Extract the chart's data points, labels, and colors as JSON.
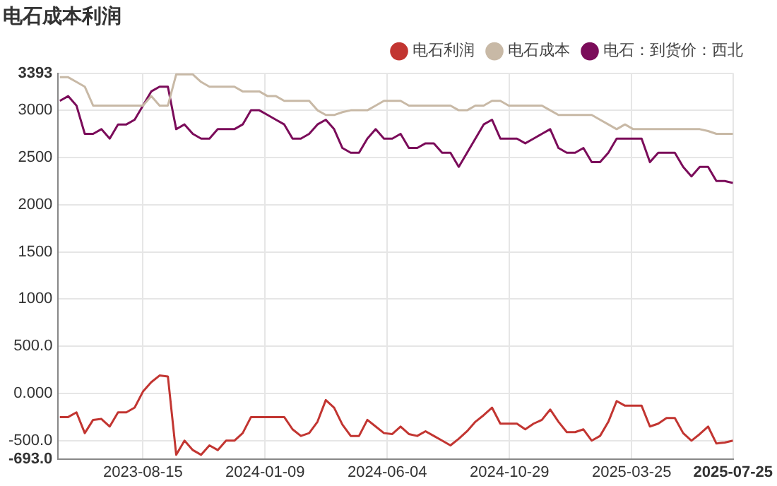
{
  "chart_data": {
    "type": "line",
    "title": "电石成本利润",
    "x": [
      "2023-05-07",
      "2023-05-17",
      "2023-05-27",
      "2023-06-06",
      "2023-06-16",
      "2023-06-26",
      "2023-07-06",
      "2023-07-16",
      "2023-07-26",
      "2023-08-05",
      "2023-08-15",
      "2023-08-25",
      "2023-09-04",
      "2023-09-14",
      "2023-09-24",
      "2023-10-04",
      "2023-10-14",
      "2023-10-24",
      "2023-11-03",
      "2023-11-13",
      "2023-11-23",
      "2023-12-03",
      "2023-12-13",
      "2023-12-23",
      "2024-01-02",
      "2024-01-12",
      "2024-01-22",
      "2024-02-01",
      "2024-02-11",
      "2024-02-21",
      "2024-03-02",
      "2024-03-12",
      "2024-03-22",
      "2024-04-01",
      "2024-04-11",
      "2024-04-21",
      "2024-05-01",
      "2024-05-11",
      "2024-05-21",
      "2024-05-31",
      "2024-06-10",
      "2024-06-20",
      "2024-06-30",
      "2024-07-10",
      "2024-07-20",
      "2024-07-30",
      "2024-08-09",
      "2024-08-19",
      "2024-08-29",
      "2024-09-08",
      "2024-09-18",
      "2024-09-28",
      "2024-10-08",
      "2024-10-18",
      "2024-10-28",
      "2024-11-07",
      "2024-11-17",
      "2024-11-27",
      "2024-12-07",
      "2024-12-17",
      "2024-12-27",
      "2025-01-06",
      "2025-01-16",
      "2025-01-26",
      "2025-02-05",
      "2025-02-15",
      "2025-02-25",
      "2025-03-07",
      "2025-03-17",
      "2025-03-27",
      "2025-04-06",
      "2025-04-16",
      "2025-04-26",
      "2025-05-06",
      "2025-05-16",
      "2025-05-26",
      "2025-06-05",
      "2025-06-15",
      "2025-06-25",
      "2025-07-05",
      "2025-07-15",
      "2025-07-25"
    ],
    "series": [
      {
        "name": "电石利润",
        "color": "#c23531",
        "values": [
          -250,
          -250,
          -200,
          -420,
          -280,
          -270,
          -350,
          -200,
          -200,
          -150,
          20,
          120,
          190,
          180,
          -650,
          -500,
          -600,
          -650,
          -550,
          -600,
          -500,
          -500,
          -420,
          -250,
          -250,
          -250,
          -250,
          -250,
          -380,
          -450,
          -420,
          -300,
          -70,
          -150,
          -330,
          -450,
          -450,
          -280,
          -350,
          -420,
          -430,
          -350,
          -430,
          -450,
          -400,
          -450,
          -500,
          -550,
          -480,
          -400,
          -300,
          -230,
          -150,
          -320,
          -320,
          -320,
          -380,
          -320,
          -280,
          -170,
          -300,
          -410,
          -410,
          -380,
          -500,
          -450,
          -300,
          -80,
          -130,
          -130,
          -130,
          -350,
          -320,
          -260,
          -260,
          -420,
          -500,
          -430,
          -350,
          -530,
          -520,
          -500
        ]
      },
      {
        "name": "电石成本",
        "color": "#c8b9a6",
        "values": [
          3350,
          3350,
          3300,
          3250,
          3050,
          3050,
          3050,
          3050,
          3050,
          3050,
          3050,
          3150,
          3050,
          3050,
          3380,
          3380,
          3380,
          3300,
          3250,
          3250,
          3250,
          3250,
          3200,
          3200,
          3200,
          3150,
          3150,
          3100,
          3100,
          3100,
          3100,
          3000,
          2950,
          2950,
          2980,
          3000,
          3000,
          3000,
          3050,
          3100,
          3100,
          3100,
          3050,
          3050,
          3050,
          3050,
          3050,
          3050,
          3000,
          3000,
          3050,
          3050,
          3100,
          3100,
          3050,
          3050,
          3050,
          3050,
          3050,
          3000,
          2950,
          2950,
          2950,
          2950,
          2950,
          2900,
          2850,
          2800,
          2850,
          2800,
          2800,
          2800,
          2800,
          2800,
          2800,
          2800,
          2800,
          2800,
          2780,
          2750,
          2750,
          2750
        ]
      },
      {
        "name": "电石：到货价：西北",
        "color": "#7b0c5a",
        "values": [
          3100,
          3150,
          3050,
          2750,
          2750,
          2800,
          2700,
          2850,
          2850,
          2900,
          3050,
          3200,
          3250,
          3250,
          2800,
          2850,
          2750,
          2700,
          2700,
          2800,
          2800,
          2800,
          2850,
          3000,
          3000,
          2950,
          2900,
          2850,
          2700,
          2700,
          2750,
          2850,
          2900,
          2800,
          2600,
          2550,
          2550,
          2700,
          2800,
          2700,
          2700,
          2750,
          2600,
          2600,
          2650,
          2650,
          2550,
          2550,
          2400,
          2550,
          2700,
          2850,
          2900,
          2700,
          2700,
          2700,
          2650,
          2700,
          2750,
          2800,
          2600,
          2550,
          2550,
          2600,
          2450,
          2450,
          2550,
          2700,
          2700,
          2700,
          2700,
          2450,
          2550,
          2550,
          2550,
          2400,
          2300,
          2400,
          2400,
          2250,
          2250,
          2230
        ]
      }
    ],
    "xlim": [
      "2023-05-05",
      "2025-07-25"
    ],
    "xticks": [
      {
        "value": "2023-08-15",
        "label": "2023-08-15"
      },
      {
        "value": "2024-01-09",
        "label": "2024-01-09"
      },
      {
        "value": "2024-06-04",
        "label": "2024-06-04"
      },
      {
        "value": "2024-10-29",
        "label": "2024-10-29"
      },
      {
        "value": "2025-03-25",
        "label": "2025-03-25"
      },
      {
        "value": "2025-07-25",
        "label": "2025-07-25"
      }
    ],
    "ylim": [
      -693,
      3393
    ],
    "yticks": [
      {
        "value": -693,
        "label": "-693.0"
      },
      {
        "value": -500,
        "label": "-500.0"
      },
      {
        "value": 0,
        "label": "0.000"
      },
      {
        "value": 500,
        "label": "500.0"
      },
      1000,
      1500,
      2000,
      2500,
      3000,
      3393
    ],
    "grid": true,
    "legend": "top right",
    "marker": "none",
    "line_style": "solid"
  }
}
